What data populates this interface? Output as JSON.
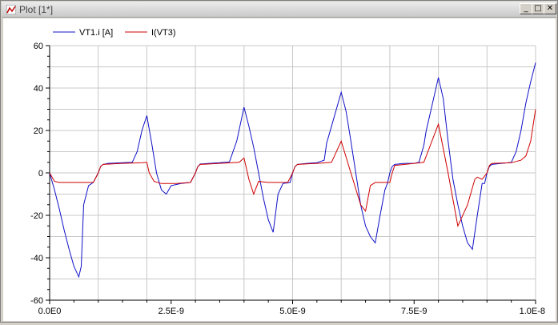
{
  "window": {
    "title": "Plot [1*]"
  },
  "titlebar_buttons": {
    "minimize": "_",
    "maximize": "□",
    "close": "✕"
  },
  "colors": {
    "series_blue": "#1010c8",
    "series_red": "#d00000",
    "grid": "#c8c8c8"
  },
  "chart_data": {
    "type": "line",
    "title": "",
    "xlabel": "",
    "ylabel": "",
    "xlim": [
      0,
      1e-08
    ],
    "ylim": [
      -60,
      60
    ],
    "grid": true,
    "legend_position": "top-left",
    "x_tick_labels": [
      "0.0E0",
      "2.5E-9",
      "5.0E-9",
      "7.5E-9",
      "1.0E-8"
    ],
    "y_tick_labels": [
      "60",
      "40",
      "20",
      "0",
      "-20",
      "-40",
      "-60"
    ],
    "series": [
      {
        "name": "VT1.i [A]",
        "color": "#1010c8",
        "x": [
          0,
          1e-10,
          2e-10,
          3e-10,
          4e-10,
          5e-10,
          6e-10,
          6.5e-10,
          7e-10,
          8e-10,
          9e-10,
          1e-09,
          1.05e-09,
          1.1e-09,
          1.2e-09,
          1.5e-09,
          1.7e-09,
          1.8e-09,
          1.9e-09,
          2e-09,
          2.1e-09,
          2.2e-09,
          2.3e-09,
          2.4e-09,
          2.5e-09,
          2.7e-09,
          2.9e-09,
          3e-09,
          3.05e-09,
          3.1e-09,
          3.5e-09,
          3.7e-09,
          3.85e-09,
          4e-09,
          4.1e-09,
          4.2e-09,
          4.3e-09,
          4.4e-09,
          4.5e-09,
          4.6e-09,
          4.7e-09,
          4.8e-09,
          4.95e-09,
          5e-09,
          5.05e-09,
          5.1e-09,
          5.3e-09,
          5.5e-09,
          5.65e-09,
          5.7e-09,
          5.8e-09,
          6e-09,
          6.1e-09,
          6.2e-09,
          6.3e-09,
          6.4e-09,
          6.5e-09,
          6.6e-09,
          6.7e-09,
          6.8e-09,
          6.9e-09,
          6.95e-09,
          7e-09,
          7.05e-09,
          7.1e-09,
          7.3e-09,
          7.5e-09,
          7.6e-09,
          7.7e-09,
          7.75e-09,
          7.8e-09,
          8e-09,
          8.1e-09,
          8.2e-09,
          8.3e-09,
          8.4e-09,
          8.5e-09,
          8.6e-09,
          8.7e-09,
          8.8e-09,
          8.9e-09,
          8.95e-09,
          9e-09,
          9.05e-09,
          9.1e-09,
          9.3e-09,
          9.5e-09,
          9.6e-09,
          9.7e-09,
          9.8e-09,
          9.9e-09,
          1e-08
        ],
        "y": [
          0,
          -8,
          -17,
          -27,
          -36,
          -44,
          -49,
          -44,
          -15,
          -6,
          -4.5,
          0,
          3,
          4,
          4.5,
          4.8,
          5,
          10,
          20,
          27,
          14,
          0,
          -8,
          -10,
          -6,
          -5,
          -4.5,
          0,
          3,
          4.2,
          4.8,
          5.2,
          15,
          31,
          22,
          12,
          0,
          -12,
          -22,
          -28,
          -10,
          -5,
          -4.5,
          0,
          3,
          4,
          4.5,
          4.8,
          6,
          14,
          22,
          38,
          29,
          15,
          0,
          -15,
          -25,
          -30,
          -33,
          -20,
          -8,
          -5,
          0,
          3,
          4,
          4.5,
          4.5,
          5,
          13,
          20,
          25,
          45,
          35,
          15,
          -3,
          -15,
          -25,
          -33,
          -36,
          -20,
          -5,
          -5,
          0,
          3,
          4,
          4.5,
          5,
          10,
          20,
          33,
          43,
          52
        ]
      },
      {
        "name": "I(VT3)",
        "color": "#d00000",
        "x": [
          0,
          1e-10,
          2e-10,
          4e-10,
          6e-10,
          8e-10,
          9e-10,
          1e-09,
          1.05e-09,
          1.1e-09,
          1.5e-09,
          1.9e-09,
          2e-09,
          2.05e-09,
          2.15e-09,
          2.3e-09,
          2.6e-09,
          2.9e-09,
          3e-09,
          3.05e-09,
          3.1e-09,
          3.5e-09,
          3.9e-09,
          4e-09,
          4.1e-09,
          4.2e-09,
          4.3e-09,
          4.5e-09,
          4.9e-09,
          5e-09,
          5.05e-09,
          5.1e-09,
          5.5e-09,
          5.8e-09,
          6e-09,
          6.2e-09,
          6.4e-09,
          6.5e-09,
          6.6e-09,
          6.7e-09,
          7e-09,
          7.05e-09,
          7.1e-09,
          7.5e-09,
          7.7e-09,
          8e-09,
          8.2e-09,
          8.4e-09,
          8.6e-09,
          8.75e-09,
          8.8e-09,
          8.9e-09,
          9e-09,
          9.05e-09,
          9.1e-09,
          9.5e-09,
          9.7e-09,
          9.8e-09,
          9.9e-09,
          1e-08
        ],
        "y": [
          0,
          -4,
          -4.5,
          -4.5,
          -4.5,
          -4.5,
          -4.5,
          0,
          3,
          4,
          4.5,
          4.8,
          5,
          0,
          -4,
          -5,
          -5,
          -4.5,
          0,
          3,
          4,
          4.5,
          5,
          7,
          -3,
          -10,
          -4,
          -4.5,
          -4.5,
          0,
          3,
          4,
          4.5,
          5,
          15,
          0,
          -15,
          -18,
          -6,
          -4.5,
          -4.5,
          0,
          3.5,
          4.5,
          5,
          23,
          0,
          -25,
          -15,
          -3,
          -2,
          -3,
          0,
          3.5,
          4.5,
          4.8,
          6,
          8,
          15,
          30
        ]
      }
    ]
  }
}
